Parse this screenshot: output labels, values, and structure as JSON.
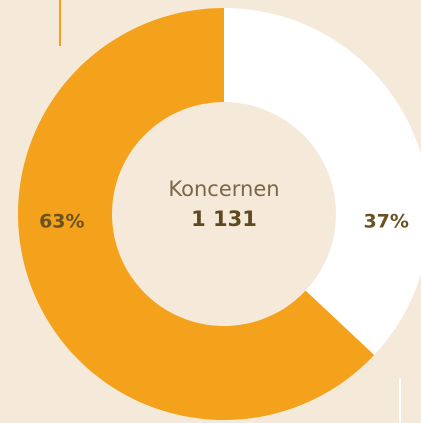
{
  "chart_data": {
    "type": "donut",
    "center_label": "Koncernen",
    "center_value": "1 131",
    "values": [
      37,
      63
    ],
    "value_labels": [
      "37%",
      "63%"
    ],
    "colors": [
      "#ffffff",
      "#f4a11b"
    ]
  }
}
